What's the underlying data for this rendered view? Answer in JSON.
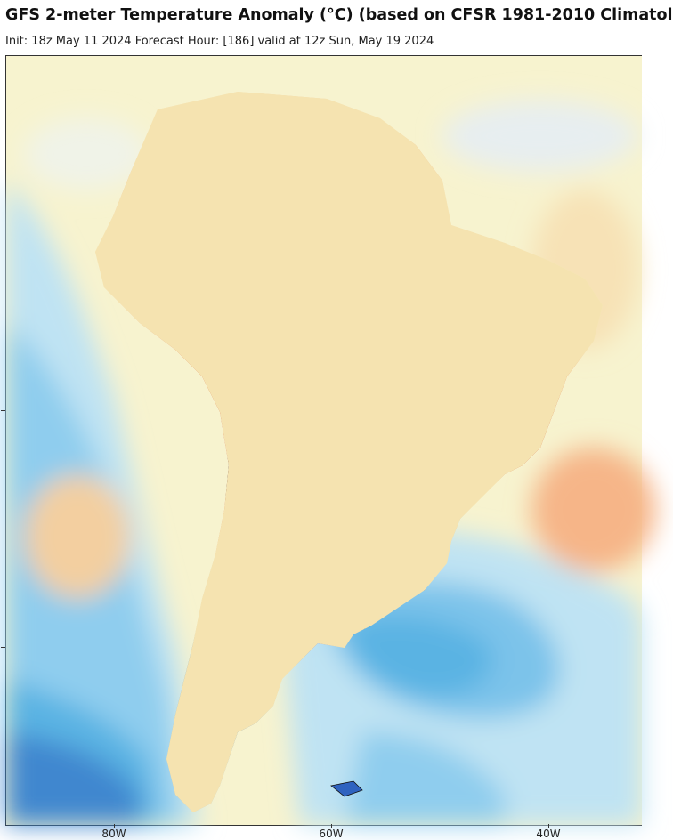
{
  "header": {
    "title": "GFS 2-meter Temperature Anomaly (°C) (based on CFSR 1981-2010 Climatol",
    "subtitle": "Init: 18z May 11 2024   Forecast Hour: [186]   valid at 12z Sun, May 19 2024"
  },
  "map": {
    "region": "South America",
    "longitude_labels": [
      "80W",
      "60W",
      "40W"
    ],
    "colors": {
      "warm_strong": "#c8321e",
      "warm": "#ea6a3a",
      "warm_light": "#f6b588",
      "neutral": "#f7f3cf",
      "cool_light": "#bfe3f3",
      "cool": "#5ab3e3",
      "cold": "#2f63c0",
      "very_cold": "#7a4fd0"
    }
  }
}
